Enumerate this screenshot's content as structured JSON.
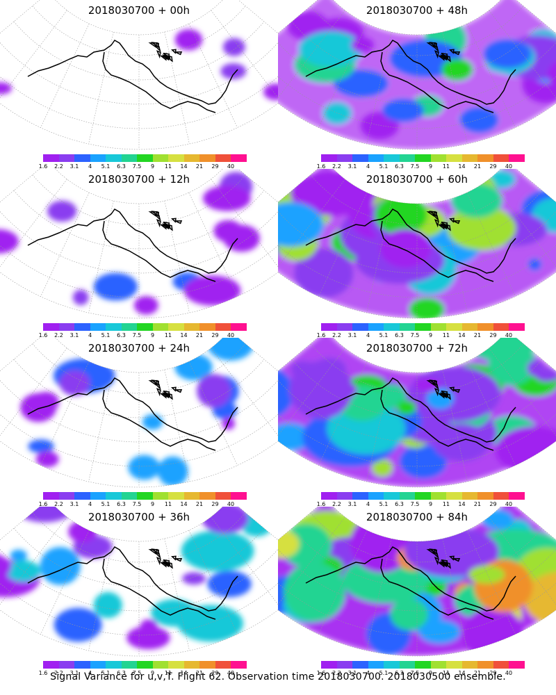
{
  "panels": [
    {
      "title": "2018030700  +  00h",
      "intensity": 0
    },
    {
      "title": "2018030700  +  48h",
      "intensity": 4
    },
    {
      "title": "2018030700  +  12h",
      "intensity": 1
    },
    {
      "title": "2018030700  +  60h",
      "intensity": 5
    },
    {
      "title": "2018030700  +  24h",
      "intensity": 2
    },
    {
      "title": "2018030700  +  72h",
      "intensity": 6
    },
    {
      "title": "2018030700  +  36h",
      "intensity": 3
    },
    {
      "title": "2018030700  +  84h",
      "intensity": 7
    }
  ],
  "legend": {
    "labels": [
      "1.6",
      "2.2",
      "3.1",
      "4",
      "5.1",
      "6.3",
      "7.5",
      "9",
      "11",
      "14",
      "21",
      "29",
      "40"
    ],
    "colors": [
      "#a020f0",
      "#8a3df0",
      "#2c62ff",
      "#1aa2ff",
      "#18c8d8",
      "#22d492",
      "#22d622",
      "#a0e030",
      "#d6e040",
      "#e6b830",
      "#f0902a",
      "#f0503a",
      "#ff1090"
    ]
  },
  "caption": "Signal Variance for u,v,T. Flight 62. Observation time 2018030700. 2018030500 ensemble."
}
